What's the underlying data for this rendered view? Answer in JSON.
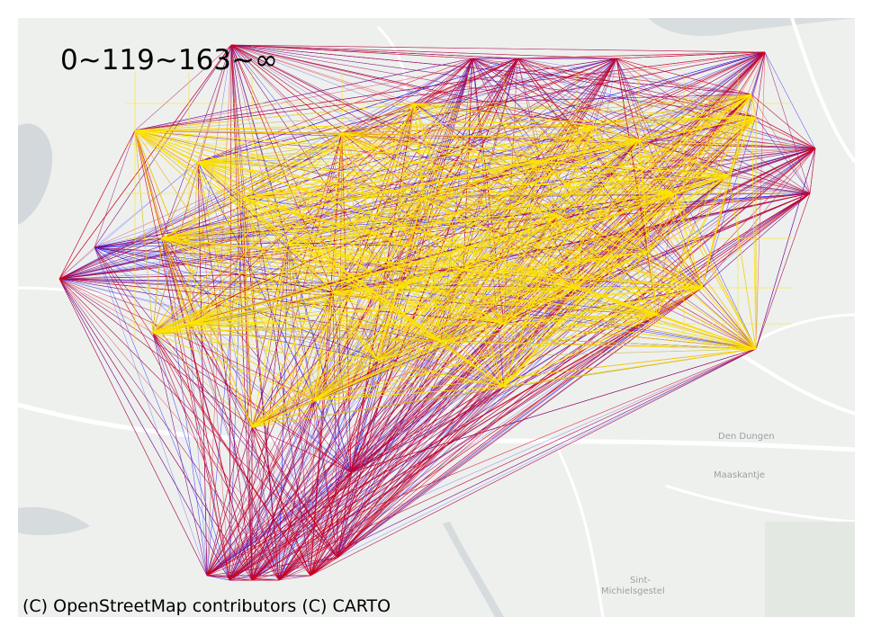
{
  "legend": {
    "text": "0~119~163~∞"
  },
  "attribution": "(C) OpenStreetMap contributors (C) CARTO",
  "place_labels": {
    "den_dungen": "Den Dungen",
    "maaskantje": "Maaskantje",
    "sint_michielsgestel_1": "Sint-",
    "sint_michielsgestel_2": "Michielsgestel"
  },
  "edge_colors": {
    "low": "#0000ff",
    "mid": "#d4001c",
    "high": "#ffe600"
  },
  "basemap_colors": {
    "land": "#eef0ee",
    "road": "#ffffff",
    "water": "#d2d8dc",
    "green": "#e3e8e3"
  }
}
